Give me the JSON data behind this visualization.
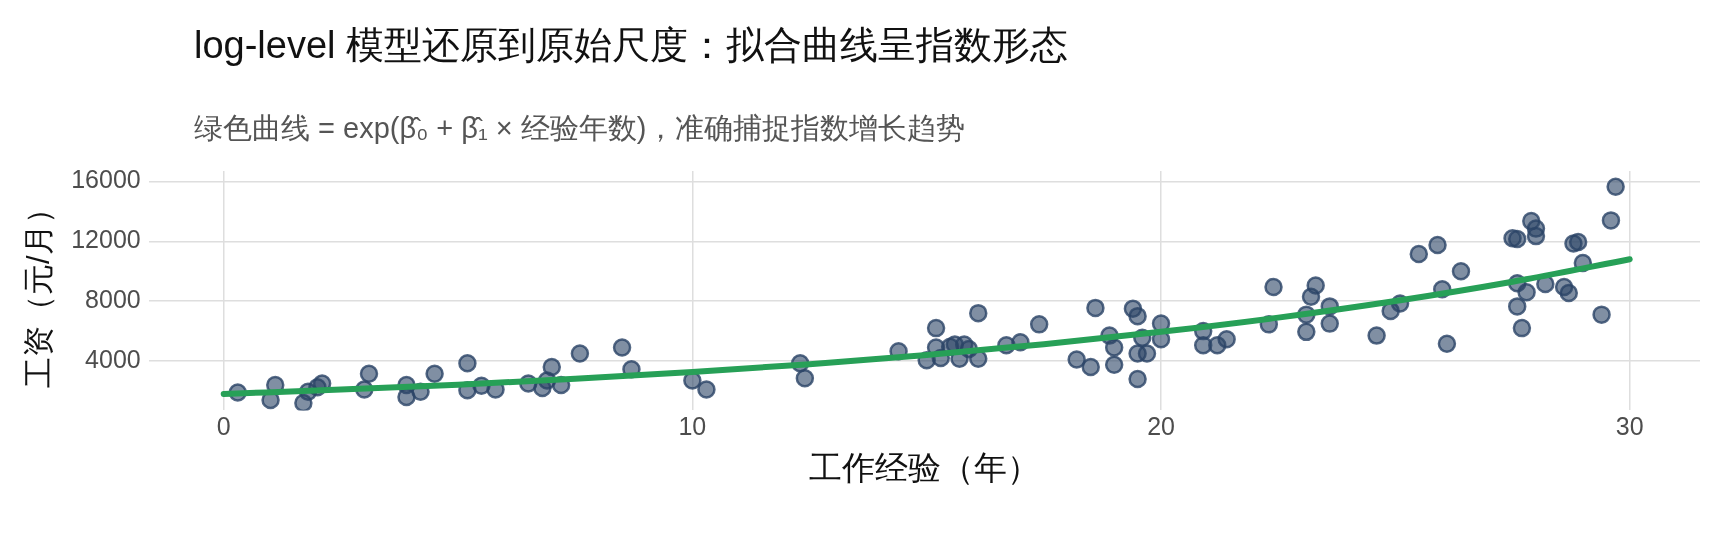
{
  "chart_data": {
    "type": "scatter",
    "title": "log-level 模型还原到原始尺度：拟合曲线呈指数形态",
    "subtitle": "绿色曲线 = exp(β̂₀ + β̂₁ × 经验年数)，准确捕捉指数增长趋势",
    "xlabel": "工作经验（年）",
    "ylabel": "工资（元/月）",
    "xlim": [
      -1.6,
      31.5
    ],
    "ylim": [
      700,
      16700
    ],
    "xticks": [
      0,
      10,
      20,
      30
    ],
    "yticks": [
      4000,
      8000,
      12000,
      16000
    ],
    "grid": true,
    "legend": false,
    "marker": "circle",
    "series": [
      {
        "color": "#2b4466",
        "x": [
          0.3,
          1.0,
          1.1,
          1.7,
          1.8,
          2.0,
          2.1,
          3.0,
          3.1,
          3.9,
          3.9,
          4.2,
          4.5,
          5.2,
          5.2,
          5.5,
          5.8,
          6.5,
          6.8,
          6.9,
          7.0,
          7.2,
          7.6,
          8.5,
          8.7,
          10.0,
          10.3,
          12.3,
          12.4,
          14.4,
          15.0,
          15.2,
          15.2,
          15.3,
          15.5,
          15.6,
          15.7,
          15.8,
          15.9,
          16.1,
          16.1,
          16.7,
          17.0,
          17.4,
          18.2,
          18.5,
          18.6,
          18.9,
          19.0,
          19.0,
          19.4,
          19.5,
          19.5,
          19.5,
          19.6,
          19.7,
          20.0,
          20.0,
          20.9,
          20.9,
          21.2,
          21.4,
          22.3,
          22.4,
          23.1,
          23.1,
          23.2,
          23.3,
          23.6,
          23.6,
          24.6,
          24.9,
          25.1,
          25.5,
          25.9,
          26.0,
          26.1,
          26.4,
          27.5,
          27.6,
          27.6,
          27.6,
          27.7,
          27.8,
          27.9,
          28.0,
          28.0,
          28.2,
          28.6,
          28.7,
          28.8,
          28.9,
          29.0,
          29.4,
          29.6,
          29.7
        ],
        "values": [
          1900,
          1400,
          2400,
          1200,
          1950,
          2250,
          2500,
          2100,
          3150,
          1600,
          2400,
          1950,
          3150,
          2050,
          3850,
          2350,
          2100,
          2500,
          2200,
          2700,
          3600,
          2400,
          4500,
          4900,
          3450,
          2700,
          2100,
          3850,
          2850,
          4650,
          4050,
          6200,
          4900,
          4200,
          4950,
          5100,
          4150,
          5100,
          4800,
          7200,
          4150,
          5050,
          5250,
          6450,
          4100,
          3600,
          7550,
          5700,
          3750,
          4900,
          7500,
          7000,
          4500,
          2800,
          5550,
          4500,
          5450,
          6500,
          5050,
          6000,
          5050,
          5450,
          6450,
          8950,
          7100,
          5950,
          8300,
          9050,
          6500,
          7650,
          5700,
          7350,
          7850,
          11150,
          11750,
          8800,
          5150,
          10000,
          12200,
          12150,
          7650,
          9200,
          6200,
          8600,
          13350,
          12850,
          12350,
          9150,
          8950,
          8550,
          11850,
          11950,
          10550,
          7100,
          13400,
          15650
        ]
      },
      {
        "type": "line",
        "color": "#27a057",
        "marker": "none",
        "x": [
          0,
          2.5,
          5,
          7.5,
          10,
          12.5,
          15,
          17.5,
          20,
          22.5,
          25,
          27.5,
          30
        ],
        "values": [
          1800,
          2090,
          2420,
          2810,
          3270,
          3790,
          4410,
          5120,
          5950,
          6900,
          8010,
          9300,
          10800
        ]
      }
    ]
  }
}
